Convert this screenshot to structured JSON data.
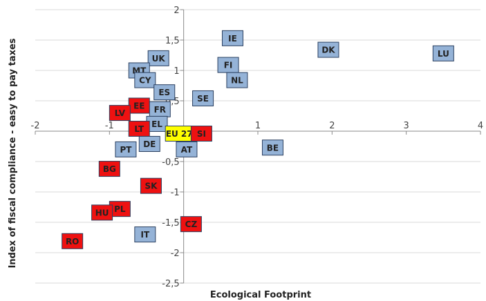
{
  "chart_data": {
    "type": "scatter",
    "title": "",
    "xlabel": "Ecological Footprint",
    "ylabel": "Index of fiscal compliance - easy to pay taxes",
    "xlim": [
      -2,
      4
    ],
    "ylim": [
      -2.5,
      2
    ],
    "x_ticks": [
      "-2",
      "-1",
      "0",
      "1",
      "2",
      "3",
      "4"
    ],
    "y_ticks": [
      "-2,5",
      "-2",
      "-1,5",
      "-1",
      "-0,5",
      "0",
      "0,5",
      "1",
      "1,5",
      "2"
    ],
    "grid": "horizontal",
    "colors": {
      "blue": "#95b3d7",
      "red": "#ee1111",
      "yellow": "#ffff00",
      "border": "#2a3f5f",
      "grid": "#d9d9d9"
    },
    "points": [
      {
        "label": "IE",
        "x": 0.66,
        "y": 1.53,
        "color": "blue"
      },
      {
        "label": "DK",
        "x": 1.95,
        "y": 1.34,
        "color": "blue"
      },
      {
        "label": "LU",
        "x": 3.5,
        "y": 1.28,
        "color": "blue"
      },
      {
        "label": "UK",
        "x": -0.34,
        "y": 1.2,
        "color": "blue"
      },
      {
        "label": "FI",
        "x": 0.6,
        "y": 1.09,
        "color": "blue"
      },
      {
        "label": "MT",
        "x": -0.6,
        "y": 1.0,
        "color": "blue"
      },
      {
        "label": "NL",
        "x": 0.72,
        "y": 0.84,
        "color": "blue"
      },
      {
        "label": "CY",
        "x": -0.52,
        "y": 0.84,
        "color": "blue"
      },
      {
        "label": "ES",
        "x": -0.26,
        "y": 0.64,
        "color": "blue"
      },
      {
        "label": "SE",
        "x": 0.26,
        "y": 0.54,
        "color": "blue"
      },
      {
        "label": "EE",
        "x": -0.6,
        "y": 0.42,
        "color": "red"
      },
      {
        "label": "FR",
        "x": -0.32,
        "y": 0.36,
        "color": "blue"
      },
      {
        "label": "LV",
        "x": -0.86,
        "y": 0.3,
        "color": "red"
      },
      {
        "label": "EL",
        "x": -0.36,
        "y": 0.12,
        "color": "blue"
      },
      {
        "label": "LT",
        "x": -0.6,
        "y": 0.04,
        "color": "red"
      },
      {
        "label": "EU 27",
        "x": -0.06,
        "y": -0.04,
        "color": "yellow"
      },
      {
        "label": "SI",
        "x": 0.24,
        "y": -0.04,
        "color": "red"
      },
      {
        "label": "DE",
        "x": -0.46,
        "y": -0.21,
        "color": "blue"
      },
      {
        "label": "PT",
        "x": -0.78,
        "y": -0.3,
        "color": "blue"
      },
      {
        "label": "AT",
        "x": 0.04,
        "y": -0.3,
        "color": "blue"
      },
      {
        "label": "BE",
        "x": 1.2,
        "y": -0.27,
        "color": "blue"
      },
      {
        "label": "BG",
        "x": -1.0,
        "y": -0.62,
        "color": "red"
      },
      {
        "label": "SK",
        "x": -0.44,
        "y": -0.9,
        "color": "red"
      },
      {
        "label": "PL",
        "x": -0.86,
        "y": -1.28,
        "color": "red"
      },
      {
        "label": "HU",
        "x": -1.1,
        "y": -1.34,
        "color": "red"
      },
      {
        "label": "CZ",
        "x": 0.1,
        "y": -1.53,
        "color": "red"
      },
      {
        "label": "IT",
        "x": -0.52,
        "y": -1.7,
        "color": "blue"
      },
      {
        "label": "RO",
        "x": -1.5,
        "y": -1.81,
        "color": "red"
      }
    ]
  }
}
